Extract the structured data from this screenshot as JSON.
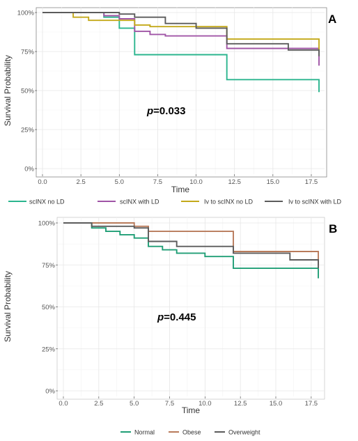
{
  "chart_data": [
    {
      "type": "line",
      "step": true,
      "panel_label": "A",
      "xlabel": "Time",
      "ylabel": "Survival Probability",
      "xlim": [
        0,
        18
      ],
      "ylim": [
        0,
        100
      ],
      "x_ticks": [
        0,
        2.5,
        5,
        7.5,
        10,
        12.5,
        15,
        17.5
      ],
      "x_tick_labels": [
        "0.0",
        "2.5",
        "5.0",
        "7.5",
        "10.0",
        "12.5",
        "15.0",
        "17.5"
      ],
      "y_ticks": [
        0,
        25,
        50,
        75,
        100
      ],
      "y_tick_labels": [
        "0%",
        "25%",
        "50%",
        "75%",
        "100%"
      ],
      "annotation": {
        "prefix": "p",
        "text": "=0.033"
      },
      "legend_position": "bottom",
      "grid": true,
      "series": [
        {
          "name": "scINX no LD",
          "color": "#2bb58e",
          "points": [
            [
              0,
              100
            ],
            [
              4,
              100
            ],
            [
              4,
              97
            ],
            [
              5,
              97
            ],
            [
              5,
              90
            ],
            [
              6,
              90
            ],
            [
              6,
              73
            ],
            [
              12,
              73
            ],
            [
              12,
              57
            ],
            [
              18,
              57
            ],
            [
              18,
              49
            ]
          ]
        },
        {
          "name": "scINX with LD",
          "color": "#a055a6",
          "points": [
            [
              0,
              100
            ],
            [
              4,
              100
            ],
            [
              4,
              98
            ],
            [
              5,
              98
            ],
            [
              5,
              96
            ],
            [
              6,
              96
            ],
            [
              6,
              88
            ],
            [
              7,
              88
            ],
            [
              7,
              86
            ],
            [
              8,
              86
            ],
            [
              8,
              85
            ],
            [
              12,
              85
            ],
            [
              12,
              77
            ],
            [
              18,
              77
            ],
            [
              18,
              66
            ]
          ]
        },
        {
          "name": "Iv to scINX no LD",
          "color": "#c4a91a",
          "points": [
            [
              0,
              100
            ],
            [
              2,
              100
            ],
            [
              2,
              97
            ],
            [
              3,
              97
            ],
            [
              3,
              95
            ],
            [
              6,
              95
            ],
            [
              6,
              92
            ],
            [
              7,
              92
            ],
            [
              7,
              91
            ],
            [
              12,
              91
            ],
            [
              12,
              83
            ],
            [
              18,
              83
            ],
            [
              18,
              75
            ]
          ]
        },
        {
          "name": "Iv to scINX with LD",
          "color": "#5b5b5b",
          "points": [
            [
              0,
              100
            ],
            [
              5,
              100
            ],
            [
              5,
              99
            ],
            [
              6,
              99
            ],
            [
              6,
              97
            ],
            [
              8,
              97
            ],
            [
              8,
              93
            ],
            [
              10,
              93
            ],
            [
              10,
              90
            ],
            [
              12,
              90
            ],
            [
              12,
              80
            ],
            [
              16,
              80
            ],
            [
              16,
              76
            ],
            [
              18,
              76
            ],
            [
              18,
              72
            ]
          ]
        }
      ]
    },
    {
      "type": "line",
      "step": true,
      "panel_label": "B",
      "xlabel": "Time",
      "ylabel": "Survival Probability",
      "xlim": [
        0,
        18
      ],
      "ylim": [
        0,
        100
      ],
      "x_ticks": [
        0,
        2.5,
        5,
        7.5,
        10,
        12.5,
        15,
        17.5
      ],
      "x_tick_labels": [
        "0.0",
        "2.5",
        "5.0",
        "7.5",
        "10.0",
        "12.5",
        "15.0",
        "17.5"
      ],
      "y_ticks": [
        0,
        25,
        50,
        75,
        100
      ],
      "y_tick_labels": [
        "0%",
        "25%",
        "50%",
        "75%",
        "100%"
      ],
      "annotation": {
        "prefix": "p",
        "text": "=0.445"
      },
      "legend_position": "bottom",
      "grid": true,
      "series": [
        {
          "name": "Normal",
          "color": "#1f9e75",
          "points": [
            [
              0,
              100
            ],
            [
              2,
              100
            ],
            [
              2,
              97
            ],
            [
              3,
              97
            ],
            [
              3,
              95
            ],
            [
              4,
              95
            ],
            [
              4,
              93
            ],
            [
              5,
              93
            ],
            [
              5,
              91
            ],
            [
              6,
              91
            ],
            [
              6,
              86
            ],
            [
              7,
              86
            ],
            [
              7,
              84
            ],
            [
              8,
              84
            ],
            [
              8,
              82
            ],
            [
              10,
              82
            ],
            [
              10,
              80
            ],
            [
              12,
              80
            ],
            [
              12,
              73
            ],
            [
              18,
              73
            ],
            [
              18,
              67
            ]
          ]
        },
        {
          "name": "Obese",
          "color": "#b87a5a",
          "points": [
            [
              0,
              100
            ],
            [
              5,
              100
            ],
            [
              5,
              98
            ],
            [
              6,
              98
            ],
            [
              6,
              95
            ],
            [
              12,
              95
            ],
            [
              12,
              83
            ],
            [
              18,
              83
            ],
            [
              18,
              75
            ]
          ]
        },
        {
          "name": "Overweight",
          "color": "#5b5b5b",
          "points": [
            [
              0,
              100
            ],
            [
              2,
              100
            ],
            [
              2,
              98
            ],
            [
              5,
              98
            ],
            [
              5,
              97
            ],
            [
              6,
              97
            ],
            [
              6,
              89
            ],
            [
              8,
              89
            ],
            [
              8,
              86
            ],
            [
              12,
              86
            ],
            [
              12,
              82
            ],
            [
              16,
              82
            ],
            [
              16,
              78
            ],
            [
              18,
              78
            ],
            [
              18,
              73
            ]
          ]
        }
      ]
    }
  ]
}
